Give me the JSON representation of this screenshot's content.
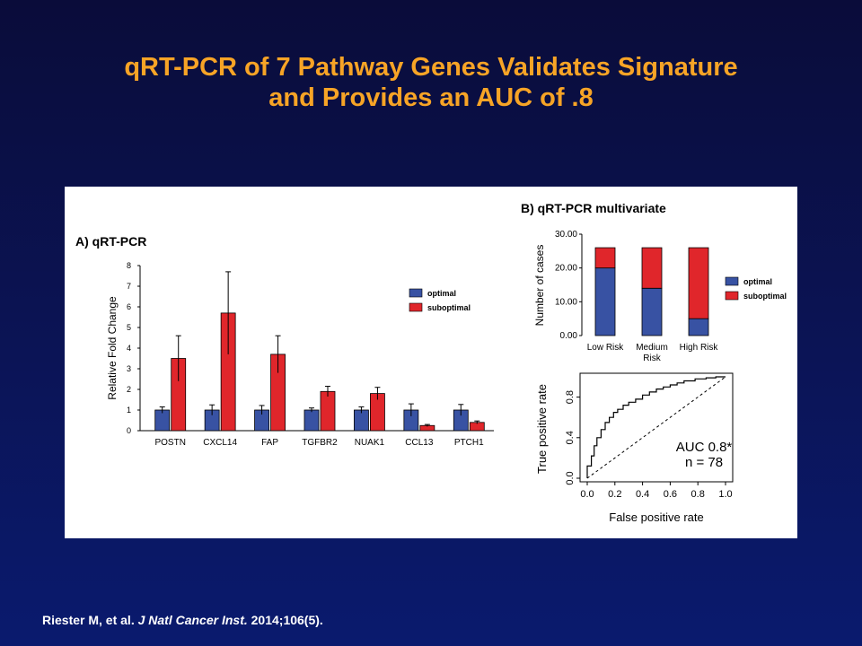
{
  "slide": {
    "title_line1": "qRT-PCR of 7 Pathway Genes Validates Signature",
    "title_line2": "and Provides an AUC of .8",
    "citation": {
      "authors": "Riester M, et al.",
      "journal": "J Natl Cancer Inst.",
      "ref": "2014;106(5)."
    }
  },
  "colors": {
    "optimal": "#3852a3",
    "suboptimal": "#e0262b",
    "background": "#0b1456",
    "title": "#f7a426"
  },
  "chart_data": [
    {
      "id": "A",
      "type": "bar",
      "title": "A) qRT-PCR",
      "ylabel": "Relative Fold Change",
      "xlabel": "",
      "ylim": [
        0,
        8
      ],
      "yticks": [
        "0",
        "1",
        "2",
        "3",
        "4",
        "5",
        "6",
        "7",
        "8"
      ],
      "categories": [
        "POSTN",
        "CXCL14",
        "FAP",
        "TGFBR2",
        "NUAK1",
        "CCL13",
        "PTCH1"
      ],
      "legend_position": "right",
      "series": [
        {
          "name": "optimal",
          "values": [
            1,
            1,
            1,
            1,
            1,
            1,
            1
          ],
          "errors": [
            0.15,
            0.25,
            0.22,
            0.1,
            0.15,
            0.3,
            0.27
          ]
        },
        {
          "name": "suboptimal",
          "values": [
            3.5,
            5.7,
            3.7,
            1.9,
            1.8,
            0.25,
            0.4
          ],
          "errors": [
            1.1,
            2.0,
            0.9,
            0.25,
            0.3,
            0.05,
            0.07
          ]
        }
      ]
    },
    {
      "id": "B",
      "type": "bar",
      "stacked": true,
      "title": "B) qRT-PCR multivariate",
      "ylabel": "Number of cases",
      "xlabel": "",
      "ylim": [
        0,
        30
      ],
      "yticks": [
        "0.00",
        "10.00",
        "20.00",
        "30.00"
      ],
      "categories": [
        "Low Risk",
        "Medium Risk",
        "High Risk"
      ],
      "category_lines": [
        [
          "Low Risk"
        ],
        [
          "Medium",
          "Risk"
        ],
        [
          "High Risk"
        ]
      ],
      "legend_position": "right",
      "series": [
        {
          "name": "optimal",
          "values": [
            20,
            14,
            5
          ]
        },
        {
          "name": "suboptimal",
          "values": [
            6,
            12,
            21
          ]
        }
      ]
    },
    {
      "id": "C",
      "type": "line",
      "title": "",
      "xlabel": "False positive rate",
      "ylabel": "True positive rate",
      "xlim": [
        0,
        1
      ],
      "ylim": [
        0,
        1
      ],
      "xticks": [
        "0.0",
        "0.2",
        "0.4",
        "0.6",
        "0.8",
        "1.0"
      ],
      "yticks": [
        "0.0",
        "0.4",
        "0.8"
      ],
      "annotations": [
        "AUC 0.8*",
        "n = 78"
      ],
      "reference_diagonal": true,
      "series": [
        {
          "name": "",
          "x": [
            0,
            0,
            0.03,
            0.03,
            0.05,
            0.05,
            0.07,
            0.07,
            0.1,
            0.1,
            0.13,
            0.13,
            0.16,
            0.16,
            0.19,
            0.19,
            0.22,
            0.22,
            0.26,
            0.26,
            0.3,
            0.3,
            0.35,
            0.35,
            0.4,
            0.4,
            0.45,
            0.45,
            0.5,
            0.5,
            0.55,
            0.55,
            0.6,
            0.6,
            0.65,
            0.65,
            0.7,
            0.7,
            0.78,
            0.78,
            0.86,
            0.86,
            0.93,
            0.93,
            1.0
          ],
          "y": [
            0,
            0.12,
            0.12,
            0.22,
            0.22,
            0.32,
            0.32,
            0.4,
            0.4,
            0.48,
            0.48,
            0.55,
            0.55,
            0.6,
            0.6,
            0.65,
            0.65,
            0.68,
            0.68,
            0.72,
            0.72,
            0.75,
            0.75,
            0.78,
            0.78,
            0.82,
            0.82,
            0.85,
            0.85,
            0.88,
            0.88,
            0.9,
            0.9,
            0.92,
            0.92,
            0.94,
            0.94,
            0.96,
            0.96,
            0.98,
            0.98,
            0.99,
            0.99,
            1.0,
            1.0
          ]
        }
      ]
    }
  ]
}
